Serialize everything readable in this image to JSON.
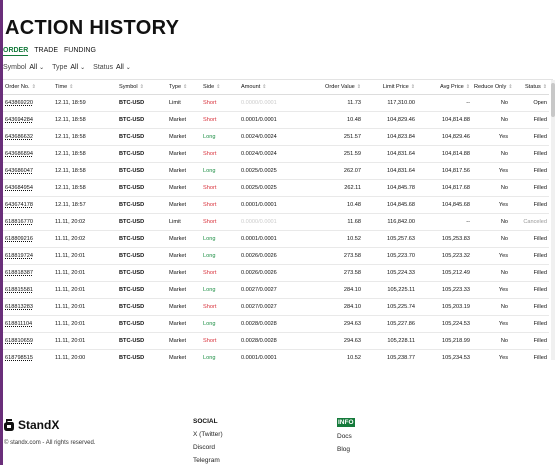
{
  "page": {
    "title": "ACTION HISTORY"
  },
  "tabs": [
    {
      "label": "ORDER",
      "active": true
    },
    {
      "label": "TRADE",
      "active": false
    },
    {
      "label": "FUNDING",
      "active": false
    }
  ],
  "filters": [
    {
      "label": "Symbol",
      "value": "All"
    },
    {
      "label": "Type",
      "value": "All"
    },
    {
      "label": "Status",
      "value": "All"
    }
  ],
  "table": {
    "headers": [
      "Order No.",
      "Time",
      "Symbol",
      "Type",
      "Side",
      "Amount",
      "Order Value",
      "Limit Price",
      "Avg Price",
      "Reduce Only",
      "Status"
    ],
    "rows": [
      {
        "order_no": "643869220",
        "time": "12.11, 18:59",
        "symbol": "BTC-USD",
        "type": "Limit",
        "side": "Short",
        "amount": "0.0000/0.0001",
        "amount_blur": true,
        "order_value": "11.73",
        "limit_price": "117,310.00",
        "avg_price": "--",
        "reduce_only": "No",
        "status": "Open"
      },
      {
        "order_no": "643694284",
        "time": "12.11, 18:58",
        "symbol": "BTC-USD",
        "type": "Market",
        "side": "Short",
        "amount": "0.0001/0.0001",
        "amount_blur": false,
        "order_value": "10.48",
        "limit_price": "104,829.46",
        "avg_price": "104,814.88",
        "reduce_only": "No",
        "status": "Filled"
      },
      {
        "order_no": "643686632",
        "time": "12.11, 18:58",
        "symbol": "BTC-USD",
        "type": "Market",
        "side": "Long",
        "amount": "0.0024/0.0024",
        "amount_blur": false,
        "order_value": "251.57",
        "limit_price": "104,823.84",
        "avg_price": "104,829.46",
        "reduce_only": "Yes",
        "status": "Filled"
      },
      {
        "order_no": "643686894",
        "time": "12.11, 18:58",
        "symbol": "BTC-USD",
        "type": "Market",
        "side": "Short",
        "amount": "0.0024/0.0024",
        "amount_blur": false,
        "order_value": "251.59",
        "limit_price": "104,831.64",
        "avg_price": "104,814.88",
        "reduce_only": "No",
        "status": "Filled"
      },
      {
        "order_no": "643686047",
        "time": "12.11, 18:58",
        "symbol": "BTC-USD",
        "type": "Market",
        "side": "Long",
        "amount": "0.0025/0.0025",
        "amount_blur": false,
        "order_value": "262.07",
        "limit_price": "104,831.64",
        "avg_price": "104,817.56",
        "reduce_only": "Yes",
        "status": "Filled"
      },
      {
        "order_no": "643684954",
        "time": "12.11, 18:58",
        "symbol": "BTC-USD",
        "type": "Market",
        "side": "Short",
        "amount": "0.0025/0.0025",
        "amount_blur": false,
        "order_value": "262.11",
        "limit_price": "104,845.78",
        "avg_price": "104,817.68",
        "reduce_only": "No",
        "status": "Filled"
      },
      {
        "order_no": "643674178",
        "time": "12.11, 18:57",
        "symbol": "BTC-USD",
        "type": "Market",
        "side": "Short",
        "amount": "0.0001/0.0001",
        "amount_blur": false,
        "order_value": "10.48",
        "limit_price": "104,845.68",
        "avg_price": "104,845.68",
        "reduce_only": "Yes",
        "status": "Filled"
      },
      {
        "order_no": "618816770",
        "time": "11.11, 20:02",
        "symbol": "BTC-USD",
        "type": "Limit",
        "side": "Short",
        "amount": "0.0000/0.0001",
        "amount_blur": true,
        "order_value": "11.68",
        "limit_price": "116,842.00",
        "avg_price": "--",
        "reduce_only": "No",
        "status": "Canceled"
      },
      {
        "order_no": "618809216",
        "time": "11.11, 20:02",
        "symbol": "BTC-USD",
        "type": "Market",
        "side": "Long",
        "amount": "0.0001/0.0001",
        "amount_blur": false,
        "order_value": "10.52",
        "limit_price": "105,257.63",
        "avg_price": "105,253.83",
        "reduce_only": "No",
        "status": "Filled"
      },
      {
        "order_no": "618819724",
        "time": "11.11, 20:01",
        "symbol": "BTC-USD",
        "type": "Market",
        "side": "Long",
        "amount": "0.0026/0.0026",
        "amount_blur": false,
        "order_value": "273.58",
        "limit_price": "105,223.70",
        "avg_price": "105,223.32",
        "reduce_only": "Yes",
        "status": "Filled"
      },
      {
        "order_no": "618818387",
        "time": "11.11, 20:01",
        "symbol": "BTC-USD",
        "type": "Market",
        "side": "Short",
        "amount": "0.0026/0.0026",
        "amount_blur": false,
        "order_value": "273.58",
        "limit_price": "105,224.33",
        "avg_price": "105,212.49",
        "reduce_only": "No",
        "status": "Filled"
      },
      {
        "order_no": "618815581",
        "time": "11.11, 20:01",
        "symbol": "BTC-USD",
        "type": "Market",
        "side": "Long",
        "amount": "0.0027/0.0027",
        "amount_blur": false,
        "order_value": "284.10",
        "limit_price": "105,225.11",
        "avg_price": "105,223.33",
        "reduce_only": "Yes",
        "status": "Filled"
      },
      {
        "order_no": "618813283",
        "time": "11.11, 20:01",
        "symbol": "BTC-USD",
        "type": "Market",
        "side": "Short",
        "amount": "0.0027/0.0027",
        "amount_blur": false,
        "order_value": "284.10",
        "limit_price": "105,225.74",
        "avg_price": "105,203.19",
        "reduce_only": "No",
        "status": "Filled"
      },
      {
        "order_no": "618811104",
        "time": "11.11, 20:01",
        "symbol": "BTC-USD",
        "type": "Market",
        "side": "Long",
        "amount": "0.0028/0.0028",
        "amount_blur": false,
        "order_value": "294.63",
        "limit_price": "105,227.86",
        "avg_price": "105,224.53",
        "reduce_only": "Yes",
        "status": "Filled"
      },
      {
        "order_no": "618810659",
        "time": "11.11, 20:01",
        "symbol": "BTC-USD",
        "type": "Market",
        "side": "Short",
        "amount": "0.0028/0.0028",
        "amount_blur": false,
        "order_value": "294.63",
        "limit_price": "105,228.11",
        "avg_price": "105,218.99",
        "reduce_only": "No",
        "status": "Filled"
      },
      {
        "order_no": "618798515",
        "time": "11.11, 20:00",
        "symbol": "BTC-USD",
        "type": "Market",
        "side": "Long",
        "amount": "0.0001/0.0001",
        "amount_blur": false,
        "order_value": "10.52",
        "limit_price": "105,238.77",
        "avg_price": "105,234.53",
        "reduce_only": "Yes",
        "status": "Filled"
      }
    ]
  },
  "footer": {
    "brand": "StandX",
    "copyright": "© standx.com - All rights reserved.",
    "social": {
      "heading": "SOCIAL",
      "links": [
        "X (Twitter)",
        "Discord",
        "Telegram"
      ]
    },
    "info": {
      "heading": "INFO",
      "links": [
        "Docs",
        "Blog"
      ]
    }
  },
  "colors": {
    "accent": "#157a3b",
    "short": "#d8313b",
    "long": "#1e8f45",
    "rail": "#6a2f7a"
  }
}
